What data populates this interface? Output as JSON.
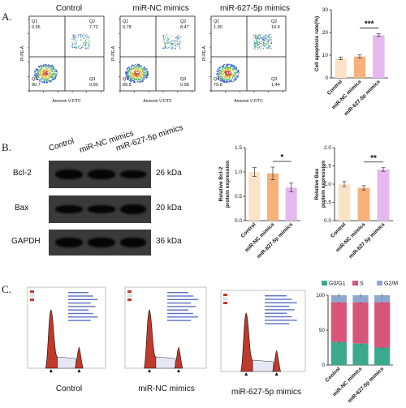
{
  "panel_labels": {
    "a": "A.",
    "b": "B.",
    "c": "C."
  },
  "facs": [
    {
      "title": "Control",
      "q1": "Q1",
      "q1v": "0.65",
      "q2": "Q2",
      "q2v": "7.72",
      "q3": "Q3",
      "q3v": "0.90",
      "q4": "Q4",
      "q4v": "90.7"
    },
    {
      "title": "miR-NC mimics",
      "q1": "Q1",
      "q1v": "0.78",
      "q2": "Q2",
      "q2v": "8.47",
      "q3": "Q3",
      "q3v": "0.98",
      "q4": "Q4",
      "q4v": "89.8"
    },
    {
      "title": "miR-627-5p mimics",
      "q1": "Q1",
      "q1v": "1.90",
      "q2": "Q2",
      "q2v": "16.9",
      "q3": "Q3",
      "q3v": "1.44",
      "q4": "Q4",
      "q4v": "79.8"
    }
  ],
  "facs_axes": {
    "xlabel": "Annexin V-FITC",
    "ylabel": "PI-PE-A"
  },
  "blot": {
    "lanes": [
      "Control",
      "miR-NC mimics",
      "miR-627-5p mimics"
    ],
    "rows": [
      {
        "protein": "Bcl-2",
        "size": "26 kDa"
      },
      {
        "protein": "Bax",
        "size": "20 kDa"
      },
      {
        "protein": "GAPDH",
        "size": "36 kDa"
      }
    ]
  },
  "cellcycle": {
    "titles": [
      "Control",
      "miR-NC mimics",
      "miR-627-5p mimics"
    ]
  },
  "colors": {
    "control": "#fbe3c8",
    "nc": "#f6b27a",
    "mimics": "#e6b8f0",
    "g0g1": "#3aa98c",
    "s": "#d8557a",
    "g2m": "#8fa7cf"
  },
  "chart_data": [
    {
      "type": "bar",
      "ylabel": "Cell apoptosis rate(%)",
      "categories": [
        "Control",
        "miR-NC mimics",
        "miR-627-5p mimics"
      ],
      "values": [
        8.6,
        9.4,
        18.8
      ],
      "errors": [
        0.6,
        0.7,
        0.6
      ],
      "ylim": [
        0,
        30
      ],
      "yticks": [
        "0",
        "10",
        "20",
        "30"
      ],
      "significance": "***"
    },
    {
      "type": "bar",
      "ylabel": "Relative Bcl-2 protein expression",
      "categories": [
        "Control",
        "miR-NC mimics",
        "miR-627-5p mimics"
      ],
      "values": [
        1.0,
        0.97,
        0.68
      ],
      "errors": [
        0.09,
        0.13,
        0.09
      ],
      "ylim": [
        0,
        1.5
      ],
      "yticks": [
        "0.0",
        "0.5",
        "1.0",
        "1.5"
      ],
      "significance": "*"
    },
    {
      "type": "bar",
      "ylabel": "Relative Bax protein expression",
      "categories": [
        "Control",
        "miR-NC mimics",
        "miR-627-5p mimics"
      ],
      "values": [
        1.0,
        0.9,
        1.4
      ],
      "errors": [
        0.07,
        0.06,
        0.05
      ],
      "ylim": [
        0,
        2.0
      ],
      "yticks": [
        "0.0",
        "0.5",
        "1.0",
        "1.5",
        "2.0"
      ],
      "significance": "**"
    },
    {
      "type": "bar",
      "stacked": true,
      "categories": [
        "Control",
        "miR-NC mimics",
        "miR-627-5p mimics"
      ],
      "series": [
        {
          "name": "G0/G1",
          "values": [
            33,
            31,
            25
          ]
        },
        {
          "name": "S",
          "values": [
            57,
            59,
            65
          ]
        },
        {
          "name": "G2/M",
          "values": [
            10,
            10,
            10
          ]
        }
      ],
      "ylim": [
        0,
        100
      ],
      "yticks": [
        "0",
        "50",
        "100"
      ],
      "legend": "top"
    }
  ]
}
